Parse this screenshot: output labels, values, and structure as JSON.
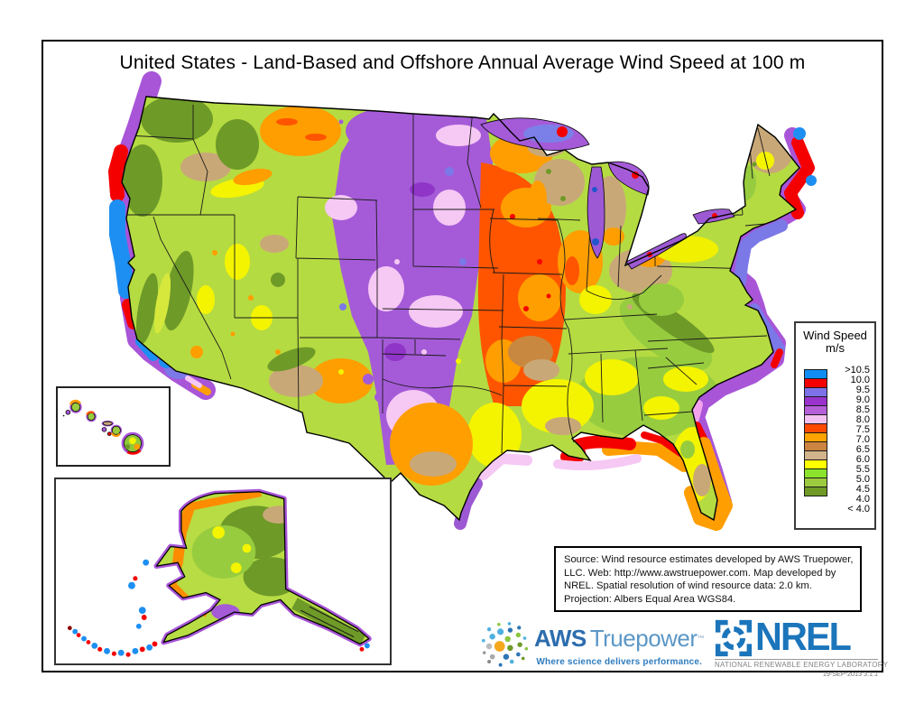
{
  "title": "United States - Land-Based and Offshore Annual Average Wind Speed at 100 m",
  "legend": {
    "title": "Wind Speed",
    "units": "m/s",
    "swatch_colors": [
      "#118cf2",
      "#f50000",
      "#7d72e8",
      "#9933cc",
      "#b55fd9",
      "#f4c2f2",
      "#ff4a00",
      "#ffa300",
      "#cc8440",
      "#d2b48c",
      "#ffff00",
      "#8be32c",
      "#9dcb3e",
      "#6f9a26"
    ],
    "boundary_labels": [
      ">10.5",
      "10.0",
      "9.5",
      "9.0",
      "8.5",
      "8.0",
      "7.5",
      "7.0",
      "6.5",
      "6.0",
      "5.5",
      "5.0",
      "4.5",
      "4.0",
      "< 4.0"
    ]
  },
  "source_box": {
    "lines": [
      "Source: Wind resource estimates developed by AWS Truepower,",
      "LLC.  Web: http://www.awstruepower.com. Map developed by",
      "NREL.  Spatial resolution of wind resource data: 2.0 km.",
      "Projection: Albers Equal Area WGS84."
    ]
  },
  "aws": {
    "name_bold": "AWS",
    "name_light": "Truepower",
    "trademark": "™",
    "tagline": "Where science delivers performance.",
    "brand_color": "#2d6dae",
    "light_color": "#5b97c6",
    "tagline_color": "#2e7cbe"
  },
  "nrel": {
    "wordmark": "NREL",
    "subtitle": "NATIONAL RENEWABLE ENERGY LABORATORY",
    "version": "19-SEP-2013 3.1.1",
    "brand_color": "#1b75bb",
    "gray": "#808285"
  },
  "map_colors": {
    "offshore_violet": "#a855d8",
    "offshore_periwinkle": "#7b78e8",
    "offshore_red": "#f50000",
    "offshore_blue": "#1e8ff2",
    "offshore_orange": "#ff9e00",
    "offshore_pink": "#f6c8f4",
    "land_base": "#b5db42",
    "olive": "#6e9a28",
    "green": "#97cc3f",
    "yellow": "#f4f400",
    "tan": "#c9a878",
    "peru": "#c98840",
    "orange": "#ff9e00",
    "orange_red": "#ff5500",
    "plains_purple": "#a55bd8",
    "pale_pink": "#f6c8f4"
  }
}
